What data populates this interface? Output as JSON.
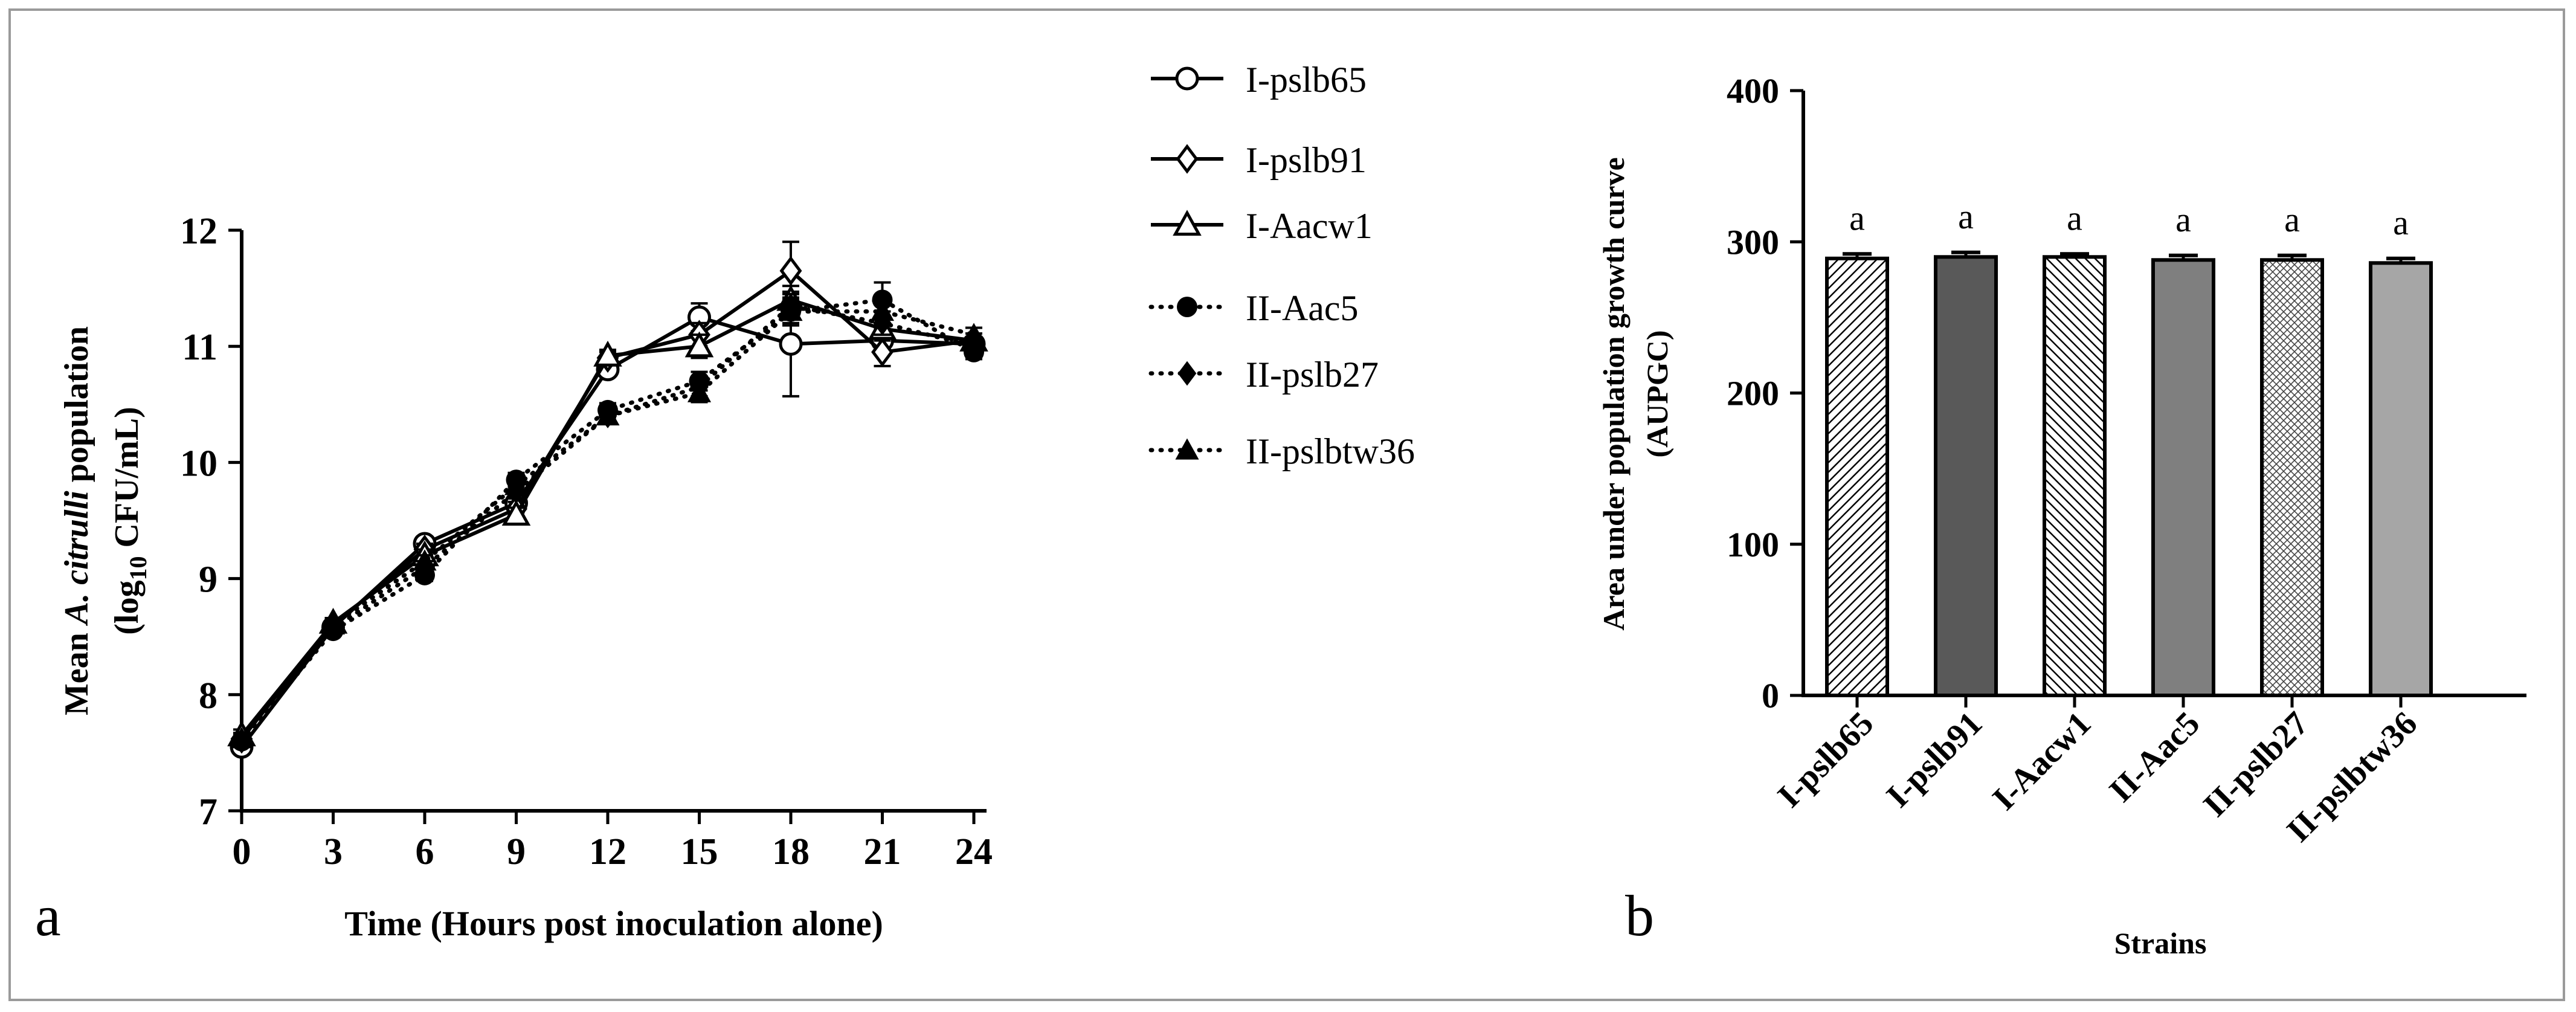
{
  "panel_labels": {
    "a": "a",
    "b": "b"
  },
  "chart_data": [
    {
      "type": "line",
      "panel": "a",
      "xlabel": "Time (Hours post inoculation alone)",
      "ylabel_parts": {
        "line1_prefix": "Mean ",
        "line1_italic": "A. citrulli",
        "line1_suffix": " population",
        "line2_prefix": "(log",
        "line2_sub": "10",
        "line2_suffix": " CFU/mL)"
      },
      "x": [
        0,
        3,
        6,
        9,
        12,
        15,
        18,
        21,
        24
      ],
      "xticks": [
        "0",
        "3",
        "6",
        "9",
        "12",
        "15",
        "18",
        "21",
        "24"
      ],
      "yticks": [
        "7",
        "8",
        "9",
        "10",
        "11",
        "12"
      ],
      "xlim": [
        0,
        24
      ],
      "ylim": [
        7,
        12
      ],
      "legend_position": "right",
      "series": [
        {
          "name": "I-pslb65",
          "marker": "open-circle",
          "dash": "solid",
          "values": [
            7.55,
            8.58,
            9.3,
            9.65,
            10.8,
            11.25,
            11.02,
            11.05,
            11.02
          ],
          "errors": [
            0.05,
            0.04,
            0.05,
            0.08,
            0.06,
            0.12,
            0.45,
            0.1,
            0.06
          ]
        },
        {
          "name": "I-pslb91",
          "marker": "open-diamond",
          "dash": "solid",
          "values": [
            7.62,
            8.6,
            9.25,
            9.6,
            10.9,
            11.1,
            11.65,
            10.95,
            11.05
          ],
          "errors": [
            0.05,
            0.04,
            0.05,
            0.06,
            0.05,
            0.1,
            0.25,
            0.12,
            0.06
          ]
        },
        {
          "name": "I-Aacw1",
          "marker": "open-triangle",
          "dash": "solid",
          "values": [
            7.65,
            8.62,
            9.2,
            9.55,
            10.92,
            11.0,
            11.4,
            11.15,
            11.05
          ],
          "errors": [
            0.05,
            0.04,
            0.05,
            0.06,
            0.05,
            0.1,
            0.12,
            0.1,
            0.06
          ]
        },
        {
          "name": "II-Aac5",
          "marker": "filled-circle",
          "dash": "dotted",
          "values": [
            7.6,
            8.55,
            9.03,
            9.85,
            10.45,
            10.7,
            11.3,
            11.4,
            10.95
          ],
          "errors": [
            0.05,
            0.04,
            0.05,
            0.06,
            0.06,
            0.08,
            0.12,
            0.15,
            0.06
          ]
        },
        {
          "name": "II-pslb27",
          "marker": "filled-diamond",
          "dash": "dotted",
          "values": [
            7.6,
            8.57,
            9.1,
            9.75,
            10.4,
            10.65,
            11.35,
            11.2,
            11.0
          ],
          "errors": [
            0.05,
            0.04,
            0.05,
            0.06,
            0.06,
            0.08,
            0.1,
            0.1,
            0.06
          ]
        },
        {
          "name": "II-pslbtw36",
          "marker": "filled-triangle",
          "dash": "dotted",
          "values": [
            7.62,
            8.6,
            9.15,
            9.8,
            10.4,
            10.6,
            11.3,
            11.3,
            11.1
          ],
          "errors": [
            0.05,
            0.04,
            0.05,
            0.06,
            0.06,
            0.08,
            0.1,
            0.1,
            0.06
          ]
        }
      ]
    },
    {
      "type": "bar",
      "panel": "b",
      "xlabel": "Strains",
      "ylabel_line1": "Area under population growth curve",
      "ylabel_line2": "(AUPGC)",
      "categories": [
        "I-pslb65",
        "I-pslb91",
        "I-Aacw1",
        "II-Aac5",
        "II-pslb27",
        "II-pslbtw36"
      ],
      "values": [
        289,
        290,
        290,
        288,
        288,
        286
      ],
      "errors": [
        3,
        3,
        2,
        3,
        3,
        3
      ],
      "letters": [
        "a",
        "a",
        "a",
        "a",
        "a",
        "a"
      ],
      "fills": [
        "hatch-right",
        "#595959",
        "hatch-left",
        "#7f7f7f",
        "crosshatch",
        "#a6a6a6"
      ],
      "yticks": [
        "0",
        "100",
        "200",
        "300",
        "400"
      ],
      "ylim": [
        0,
        400
      ]
    }
  ]
}
